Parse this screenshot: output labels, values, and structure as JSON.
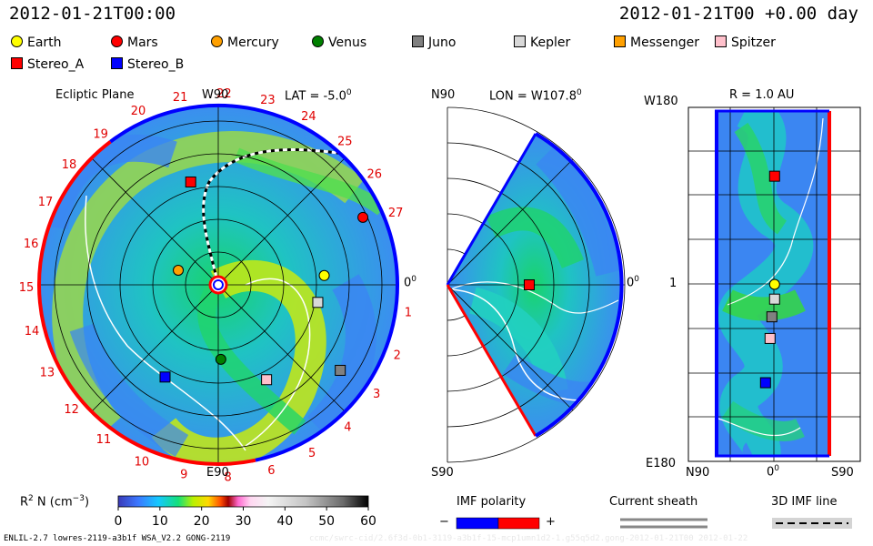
{
  "header": {
    "left_time": "2012-01-21T00:00",
    "right_time": "2012-01-21T00 +0.00 day"
  },
  "legend": {
    "items": [
      {
        "name": "Earth",
        "shape": "circle",
        "color": "#ffff00"
      },
      {
        "name": "Mars",
        "shape": "circle",
        "color": "#ff0000"
      },
      {
        "name": "Mercury",
        "shape": "circle",
        "color": "#ffa000"
      },
      {
        "name": "Venus",
        "shape": "circle",
        "color": "#008000"
      },
      {
        "name": "Juno",
        "shape": "square",
        "color": "#808080"
      },
      {
        "name": "Kepler",
        "shape": "square",
        "color": "#d8d8d8"
      },
      {
        "name": "Messenger",
        "shape": "square",
        "color": "#ffa000"
      },
      {
        "name": "Spitzer",
        "shape": "square",
        "color": "#ffc0cb"
      },
      {
        "name": "Stereo_A",
        "shape": "square",
        "color": "#ff0000"
      },
      {
        "name": "Stereo_B",
        "shape": "square",
        "color": "#0000ff"
      }
    ]
  },
  "panels": {
    "ecliptic": {
      "title": "Ecliptic Plane",
      "top_label": "W90",
      "bottom_label": "E90",
      "lat_label": "LAT = -5.0",
      "lat_sup": "0",
      "right_label": "0",
      "right_sup": "0"
    },
    "meridional": {
      "top_label": "N90",
      "bottom_label": "S90",
      "lon_label": "LON = W107.8",
      "lon_sup": "0",
      "right_label": "0",
      "right_sup": "0"
    },
    "radial": {
      "r_label": "R = 1.0 AU",
      "top_left": "W180",
      "mid_left": "1",
      "bottom_left": "E180",
      "bottom_n": "N90",
      "bottom_zero": "0",
      "bottom_zero_sup": "0",
      "bottom_s": "S90"
    }
  },
  "colorbar": {
    "label": "R",
    "label_sup": "2",
    "label_rest": " N (cm",
    "label_sup2": "−3",
    "label_end": ")",
    "ticks": [
      "0",
      "10",
      "20",
      "30",
      "40",
      "50",
      "60"
    ]
  },
  "imf": {
    "title": "IMF polarity",
    "minus": "−",
    "plus": "+",
    "colors": [
      "#0000ff",
      "#ff0000"
    ]
  },
  "sheath": {
    "title": "Current sheath"
  },
  "imf3d": {
    "title": "3D IMF line"
  },
  "footer": {
    "left": "ENLIL-2.7 lowres-2119-a3b1f WSA_V2.2 GONG-2119",
    "right": "ccmc/swrc-cid/2.6f3d-0b1-3119-a3b1f-15-mcp1umn1d2-1.g55q5d2.gong-2012-01-21T00  2012-01-22"
  },
  "chart_data": [
    {
      "type": "heatmap",
      "panel": "Ecliptic Plane",
      "quantity": "R2 N (cm-3)",
      "scale_range": [
        0,
        60
      ],
      "carrington_ticks": [
        "1",
        "2",
        "3",
        "4",
        "5",
        "6",
        "8",
        "9",
        "10",
        "11",
        "12",
        "13",
        "14",
        "15",
        "16",
        "17",
        "18",
        "19",
        "20",
        "21",
        "22",
        "23",
        "24",
        "25",
        "26",
        "27"
      ],
      "bodies": [
        {
          "name": "Earth",
          "r_au": 1.0,
          "angle_deg": 5
        },
        {
          "name": "Mars",
          "r_au": 1.5,
          "angle_deg": 25
        },
        {
          "name": "Mercury",
          "r_au": 0.4,
          "angle_deg": 160
        },
        {
          "name": "Venus",
          "r_au": 0.7,
          "angle_deg": -88
        },
        {
          "name": "Juno",
          "r_au": 1.4,
          "angle_deg": -35
        },
        {
          "name": "Kepler",
          "r_au": 0.95,
          "angle_deg": -10
        },
        {
          "name": "Spitzer",
          "r_au": 1.0,
          "angle_deg": -63
        },
        {
          "name": "Stereo_A",
          "r_au": 1.0,
          "angle_deg": 105
        },
        {
          "name": "Stereo_B",
          "r_au": 1.0,
          "angle_deg": -120
        }
      ]
    },
    {
      "type": "heatmap",
      "panel": "Meridional LON = W107.8",
      "quantity": "R2 N (cm-3)",
      "bodies": [
        {
          "name": "Stereo_A",
          "r_au": 1.0,
          "lat_deg": 0
        }
      ]
    },
    {
      "type": "heatmap",
      "panel": "R = 1.0 AU",
      "quantity": "R2 N (cm-3)",
      "x_range": [
        "N90",
        "S90"
      ],
      "y_range": [
        "W180",
        "E180"
      ],
      "bodies": [
        {
          "name": "Stereo_A",
          "lat_deg": 0,
          "lon_deg": 110
        },
        {
          "name": "Earth",
          "lat_deg": 0,
          "lon_deg": 0
        },
        {
          "name": "Kepler",
          "lat_deg": 0,
          "lon_deg": -15
        },
        {
          "name": "Juno",
          "lat_deg": -3,
          "lon_deg": -33
        },
        {
          "name": "Spitzer",
          "lat_deg": -5,
          "lon_deg": -55
        },
        {
          "name": "Stereo_B",
          "lat_deg": -10,
          "lon_deg": -100
        }
      ]
    }
  ]
}
